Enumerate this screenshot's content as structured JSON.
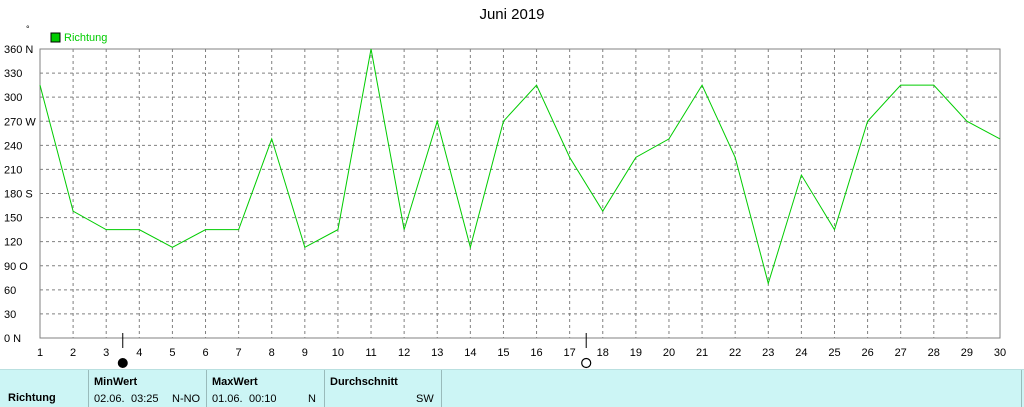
{
  "chart_data": {
    "type": "line",
    "title": "Juni 2019",
    "unit_mark": "°",
    "legend": {
      "label": "Richtung",
      "color": "#00cc00",
      "position": "top-left"
    },
    "x": [
      1,
      2,
      3,
      4,
      5,
      6,
      7,
      8,
      9,
      10,
      11,
      12,
      13,
      14,
      15,
      16,
      17,
      18,
      19,
      20,
      21,
      22,
      23,
      24,
      25,
      26,
      27,
      28,
      29,
      30
    ],
    "series": [
      {
        "name": "Richtung",
        "color": "#00cc00",
        "values": [
          315,
          158,
          135,
          135,
          113,
          135,
          135,
          248,
          113,
          135,
          360,
          135,
          270,
          113,
          270,
          315,
          225,
          158,
          225,
          248,
          315,
          225,
          68,
          203,
          135,
          270,
          315,
          315,
          270,
          248
        ]
      }
    ],
    "ylim": [
      0,
      360
    ],
    "xlim": [
      1,
      30
    ],
    "yticks": [
      {
        "value": 0,
        "label": "0 N"
      },
      {
        "value": 30,
        "label": "30"
      },
      {
        "value": 60,
        "label": "60"
      },
      {
        "value": 90,
        "label": "90 O"
      },
      {
        "value": 120,
        "label": "120"
      },
      {
        "value": 150,
        "label": "150"
      },
      {
        "value": 180,
        "label": "180 S"
      },
      {
        "value": 210,
        "label": "210"
      },
      {
        "value": 240,
        "label": "240"
      },
      {
        "value": 270,
        "label": "270 W"
      },
      {
        "value": 300,
        "label": "300"
      },
      {
        "value": 330,
        "label": "330"
      },
      {
        "value": 360,
        "label": "360 N"
      }
    ],
    "grid": true,
    "moon_phases": [
      {
        "day": 3.5,
        "phase": "new-moon"
      },
      {
        "day": 17.5,
        "phase": "full-moon"
      }
    ]
  },
  "stats": {
    "row_label": "Richtung",
    "min": {
      "header": "MinWert",
      "date": "02.06.",
      "time": "03:25",
      "value": "N-NO"
    },
    "max": {
      "header": "MaxWert",
      "date": "01.06.",
      "time": "00:10",
      "value": "N"
    },
    "avg": {
      "header": "Durchschnitt",
      "value": "SW"
    }
  }
}
